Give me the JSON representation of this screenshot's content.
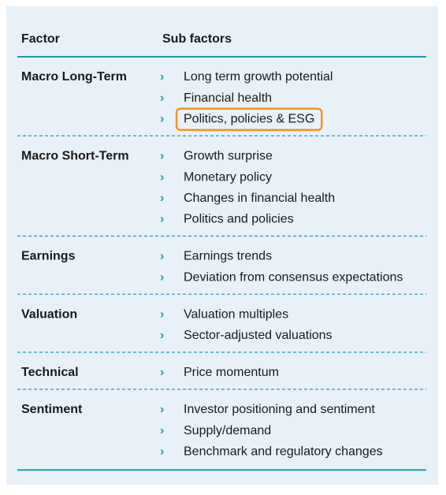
{
  "header": {
    "factor": "Factor",
    "sub_factors": "Sub factors"
  },
  "rows": [
    {
      "factor": "Macro Long-Term",
      "sub_factors": [
        "Long term growth potential",
        "Financial health",
        "Politics, policies & ESG"
      ]
    },
    {
      "factor": "Macro Short-Term",
      "sub_factors": [
        "Growth surprise",
        "Monetary policy",
        "Changes in financial health",
        "Politics and policies"
      ]
    },
    {
      "factor": "Earnings",
      "sub_factors": [
        "Earnings trends",
        "Deviation from consensus expectations"
      ]
    },
    {
      "factor": "Valuation",
      "sub_factors": [
        "Valuation multiples",
        "Sector-adjusted valuations"
      ]
    },
    {
      "factor": "Technical",
      "sub_factors": [
        "Price momentum"
      ]
    },
    {
      "factor": "Sentiment",
      "sub_factors": [
        "Investor positioning and sentiment",
        "Supply/demand",
        "Benchmark and regulatory changes"
      ]
    }
  ]
}
